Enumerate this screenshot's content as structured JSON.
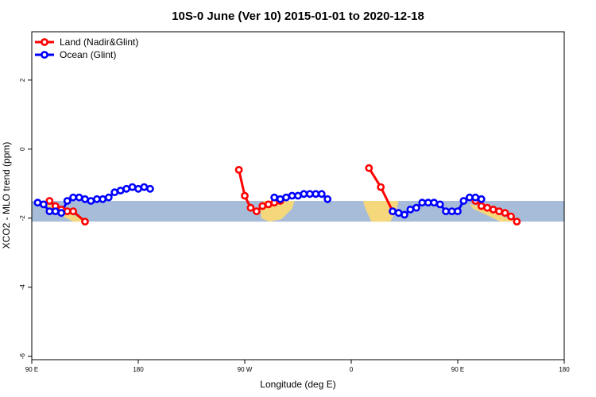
{
  "chart_data": {
    "type": "line",
    "title": "10S-0 June (Ver 10)   2015-01-01 to 2020-12-18",
    "xlabel": "Longitude (deg E)",
    "ylabel": "XCO2 - MLO trend (ppm)",
    "xlim": [
      90,
      450
    ],
    "ylim": [
      -6.1,
      3.4
    ],
    "x_ticks": [
      {
        "value": 90,
        "label": "90 E"
      },
      {
        "value": 180,
        "label": "180"
      },
      {
        "value": 270,
        "label": "90 W"
      },
      {
        "value": 360,
        "label": "0"
      },
      {
        "value": 450,
        "label": "90 E"
      },
      {
        "value": 540,
        "label": "180"
      }
    ],
    "y_ticks": [
      {
        "value": 2,
        "label": "2"
      },
      {
        "value": 0,
        "label": "0"
      },
      {
        "value": -2,
        "label": "-2"
      },
      {
        "value": -4,
        "label": "-4"
      },
      {
        "value": -6,
        "label": "-6"
      }
    ],
    "map_band": {
      "ymin": -2.1,
      "ymax": -1.5
    },
    "legend_position": "top-left",
    "grid": false,
    "series": [
      {
        "name": "Land (Nadir&Glint)",
        "color": "#ff0000",
        "segments": [
          [
            [
              105,
              -1.5
            ],
            [
              110,
              -1.65
            ],
            [
              115,
              -1.75
            ],
            [
              120,
              -1.8
            ],
            [
              125,
              -1.8
            ],
            [
              135,
              -2.1
            ]
          ],
          [
            [
              265,
              -0.6
            ],
            [
              270,
              -1.35
            ],
            [
              275,
              -1.7
            ],
            [
              280,
              -1.8
            ],
            [
              285,
              -1.65
            ],
            [
              290,
              -1.6
            ],
            [
              295,
              -1.55
            ],
            [
              300,
              -1.5
            ]
          ],
          [
            [
              375,
              -0.55
            ],
            [
              385,
              -1.1
            ],
            [
              395,
              -1.8
            ]
          ],
          [
            [
              465,
              -1.5
            ],
            [
              470,
              -1.65
            ],
            [
              475,
              -1.7
            ],
            [
              480,
              -1.75
            ],
            [
              485,
              -1.8
            ],
            [
              490,
              -1.85
            ],
            [
              495,
              -1.95
            ],
            [
              500,
              -2.1
            ]
          ]
        ]
      },
      {
        "name": "Ocean (Glint)",
        "color": "#0000ff",
        "segments": [
          [
            [
              95,
              -1.55
            ],
            [
              100,
              -1.6
            ],
            [
              105,
              -1.8
            ],
            [
              110,
              -1.8
            ],
            [
              115,
              -1.85
            ],
            [
              120,
              -1.5
            ],
            [
              125,
              -1.4
            ],
            [
              130,
              -1.4
            ],
            [
              135,
              -1.45
            ],
            [
              140,
              -1.5
            ],
            [
              145,
              -1.45
            ],
            [
              150,
              -1.45
            ],
            [
              155,
              -1.4
            ],
            [
              160,
              -1.25
            ],
            [
              165,
              -1.2
            ],
            [
              170,
              -1.15
            ],
            [
              175,
              -1.1
            ],
            [
              180,
              -1.15
            ],
            [
              185,
              -1.1
            ],
            [
              190,
              -1.15
            ]
          ],
          [
            [
              295,
              -1.4
            ],
            [
              300,
              -1.45
            ],
            [
              305,
              -1.4
            ],
            [
              310,
              -1.35
            ],
            [
              315,
              -1.35
            ],
            [
              320,
              -1.3
            ],
            [
              325,
              -1.3
            ],
            [
              330,
              -1.3
            ],
            [
              335,
              -1.3
            ],
            [
              340,
              -1.45
            ]
          ],
          [
            [
              395,
              -1.8
            ],
            [
              400,
              -1.85
            ],
            [
              405,
              -1.9
            ],
            [
              410,
              -1.75
            ],
            [
              415,
              -1.7
            ],
            [
              420,
              -1.55
            ],
            [
              425,
              -1.55
            ],
            [
              430,
              -1.55
            ],
            [
              435,
              -1.6
            ],
            [
              440,
              -1.8
            ],
            [
              445,
              -1.8
            ],
            [
              450,
              -1.8
            ],
            [
              455,
              -1.5
            ],
            [
              460,
              -1.4
            ],
            [
              465,
              -1.4
            ],
            [
              470,
              -1.45
            ]
          ]
        ]
      }
    ]
  }
}
